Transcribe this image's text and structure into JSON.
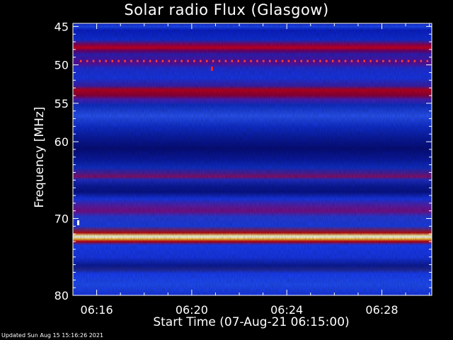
{
  "chart_data": {
    "type": "heatmap",
    "title": "Solar radio Flux (Glasgow)",
    "xlabel": "Start Time (07-Aug-21 06:15:00)",
    "ylabel": "Frequency [MHz]",
    "y_ticks": [
      45,
      50,
      55,
      60,
      70,
      80
    ],
    "ylim": [
      44.6,
      80
    ],
    "x_ticks": [
      "06:16",
      "06:20",
      "06:24",
      "06:28"
    ],
    "x_tick_minutes": [
      16,
      20,
      24,
      28
    ],
    "xlim_minutes": [
      15,
      30.1
    ],
    "bands": [
      {
        "frequency": 45.2,
        "level": "bright-blue"
      },
      {
        "frequency": 48.3,
        "level": "red"
      },
      {
        "frequency": 49.5,
        "level": "red-dotted"
      },
      {
        "frequency": 50.8,
        "level": "dark-red"
      },
      {
        "frequency": 54.3,
        "level": "red"
      },
      {
        "frequency": 55.5,
        "level": "magenta"
      },
      {
        "frequency": 57.5,
        "level": "bright-blue"
      },
      {
        "frequency": 61.5,
        "level": "dark-blue"
      },
      {
        "frequency": 64.4,
        "level": "magenta"
      },
      {
        "frequency": 65.8,
        "level": "dark-blue"
      },
      {
        "frequency": 68.5,
        "level": "dark-red"
      },
      {
        "frequency": 72.0,
        "level": "white-yellow"
      },
      {
        "frequency": 76.0,
        "level": "dark-blue"
      },
      {
        "frequency": 78.5,
        "level": "bright-blue"
      }
    ],
    "colors": {
      "background": "#000000",
      "low": "#0000a0",
      "mid": "#1a3cff",
      "high": "#c00020",
      "peak": "#ffffe0"
    }
  },
  "footer": {
    "updated": "Updated Sun Aug 15 15:16:26 2021"
  }
}
